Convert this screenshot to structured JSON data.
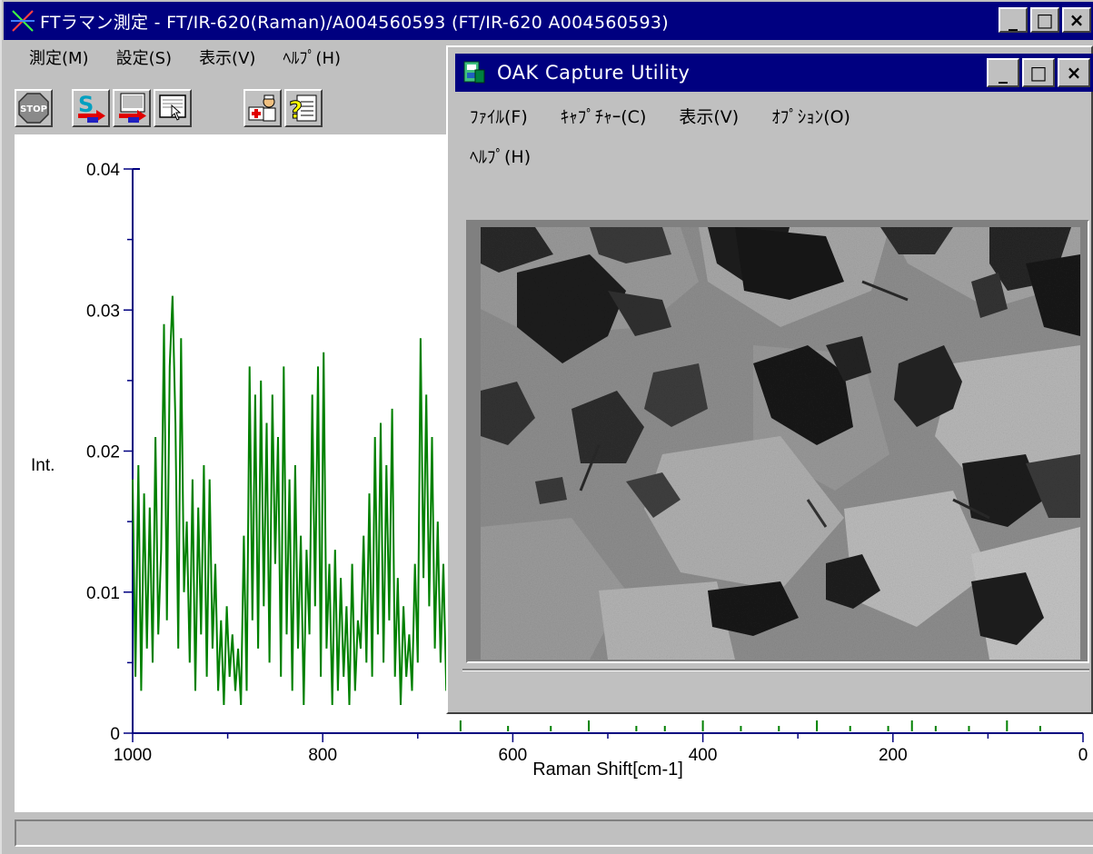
{
  "main_window": {
    "title": "FTラマン測定 - FT/IR-620(Raman)/A004560593 (FT/IR-620 A004560593)",
    "menu": [
      "測定(M)",
      "設定(S)",
      "表示(V)",
      "ﾍﾙﾌﾟ(H)"
    ],
    "toolbar": {
      "stop_label": "STOP",
      "buttons": [
        "stop-icon",
        "sample-measure-icon",
        "background-measure-icon",
        "monitor-icon",
        "diagnosis-icon",
        "help-icon"
      ]
    },
    "window_buttons": {
      "minimize": "_",
      "maximize": "□",
      "close": "×"
    },
    "status_text": ""
  },
  "chart_data": {
    "type": "line",
    "xlabel": "Raman Shift[cm-1]",
    "ylabel": "Int.",
    "xlim": [
      1000,
      0
    ],
    "ylim": [
      0,
      0.04
    ],
    "x_ticks": [
      "1000",
      "800",
      "600",
      "400",
      "200",
      "0"
    ],
    "y_ticks": [
      "0",
      "0.01",
      "0.02",
      "0.03",
      "0.04"
    ],
    "line_color": "#008000",
    "axis_color": "#000080",
    "series": [
      {
        "x": [
          1000,
          997,
          994,
          991,
          988,
          985,
          982,
          979,
          976,
          973,
          970,
          967,
          964,
          961,
          958,
          955,
          952,
          949,
          946,
          943,
          940,
          937,
          934,
          931,
          928,
          925,
          922,
          919,
          916,
          913,
          910,
          907,
          904,
          901,
          898,
          895,
          892,
          889,
          886,
          883,
          880,
          877,
          874,
          871,
          868,
          865,
          862,
          859,
          856,
          853,
          850,
          847,
          844,
          841,
          838,
          835,
          832,
          829,
          826,
          823,
          820,
          817,
          814,
          811,
          808,
          805,
          802,
          799,
          796,
          793,
          790,
          787,
          784,
          781,
          778,
          775,
          772,
          769,
          766,
          763,
          760,
          757,
          754,
          751,
          748,
          745,
          742,
          739,
          736,
          733,
          730,
          727,
          724,
          721,
          718,
          715,
          712,
          709,
          706,
          703,
          700,
          697,
          694,
          691,
          688,
          685,
          682,
          679,
          676,
          673,
          670,
          667
        ],
        "y": [
          0.018,
          0.004,
          0.019,
          0.003,
          0.017,
          0.006,
          0.016,
          0.005,
          0.021,
          0.007,
          0.013,
          0.029,
          0.008,
          0.026,
          0.031,
          0.022,
          0.006,
          0.028,
          0.01,
          0.015,
          0.005,
          0.018,
          0.003,
          0.016,
          0.007,
          0.019,
          0.004,
          0.018,
          0.006,
          0.012,
          0.003,
          0.008,
          0.002,
          0.009,
          0.004,
          0.007,
          0.003,
          0.006,
          0.002,
          0.014,
          0.003,
          0.026,
          0.008,
          0.024,
          0.006,
          0.025,
          0.009,
          0.022,
          0.005,
          0.024,
          0.012,
          0.021,
          0.004,
          0.026,
          0.007,
          0.018,
          0.003,
          0.019,
          0.006,
          0.014,
          0.002,
          0.013,
          0.007,
          0.024,
          0.009,
          0.026,
          0.004,
          0.027,
          0.006,
          0.012,
          0.002,
          0.013,
          0.003,
          0.011,
          0.004,
          0.009,
          0.002,
          0.012,
          0.003,
          0.008,
          0.006,
          0.014,
          0.005,
          0.017,
          0.004,
          0.021,
          0.007,
          0.022,
          0.005,
          0.019,
          0.008,
          0.023,
          0.004,
          0.011,
          0.002,
          0.009,
          0.004,
          0.007,
          0.003,
          0.012,
          0.005,
          0.028,
          0.011,
          0.024,
          0.009,
          0.021,
          0.006,
          0.015,
          0.005,
          0.012,
          0.003,
          0.008
        ]
      }
    ]
  },
  "oak_window": {
    "title": "OAK Capture Utility",
    "menu": [
      "ﾌｧｲﾙ(F)",
      "ｷｬﾌﾟﾁｬｰ(C)",
      "表示(V)",
      "ｵﾌﾟｼｮﾝ(O)"
    ],
    "menu_row2": [
      "ﾍﾙﾌﾟ(H)"
    ]
  }
}
